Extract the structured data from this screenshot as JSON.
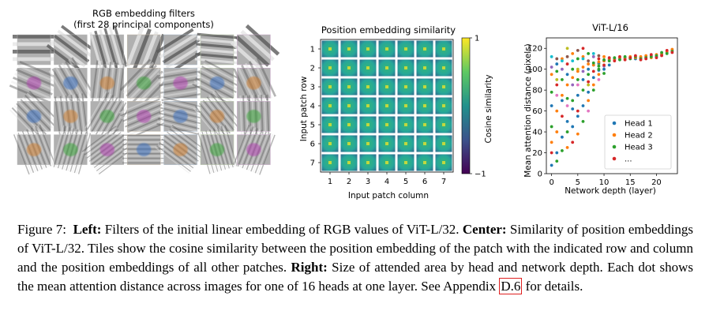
{
  "left_panel": {
    "title_line1": "RGB embedding filters",
    "title_line2": "(first 28 principal components)"
  },
  "center_panel": {
    "chart_data": {
      "type": "heatmap",
      "title": "Position embedding similarity",
      "xlabel": "Input patch column",
      "ylabel": "Input patch row",
      "x_ticks": [
        "1",
        "2",
        "3",
        "4",
        "5",
        "6",
        "7"
      ],
      "y_ticks": [
        "1",
        "2",
        "3",
        "4",
        "5",
        "6",
        "7"
      ],
      "colorbar_label": "Cosine similarity",
      "colorbar_ticks": [
        "1",
        "−1"
      ],
      "colorbar_range": [
        -1,
        1
      ]
    }
  },
  "right_panel": {
    "chart_data": {
      "type": "scatter",
      "title": "ViT-L/16",
      "xlabel": "Network depth (layer)",
      "ylabel": "Mean attention distance (pixels)",
      "xlim": [
        -1,
        24
      ],
      "ylim": [
        0,
        130
      ],
      "x_ticks": [
        0,
        5,
        10,
        15,
        20
      ],
      "y_ticks": [
        0,
        20,
        40,
        60,
        80,
        100,
        120
      ],
      "legend_position": "center-right",
      "series": [
        {
          "name": "Head 1",
          "color": "#1f77b4",
          "values": [
            [
              0,
              8
            ],
            [
              1,
              20
            ],
            [
              2,
              35
            ],
            [
              3,
              50
            ],
            [
              4,
              62
            ],
            [
              5,
              75
            ],
            [
              6,
              90
            ],
            [
              7,
              100
            ],
            [
              8,
              104
            ],
            [
              9,
              106
            ],
            [
              10,
              108
            ],
            [
              11,
              109
            ],
            [
              12,
              110
            ],
            [
              13,
              110
            ],
            [
              14,
              111
            ],
            [
              15,
              111
            ],
            [
              16,
              110
            ],
            [
              17,
              111
            ],
            [
              18,
              112
            ],
            [
              19,
              113
            ],
            [
              20,
              112
            ],
            [
              21,
              114
            ],
            [
              22,
              116
            ],
            [
              23,
              118
            ]
          ]
        },
        {
          "name": "Head 2",
          "color": "#ff7f0e",
          "values": [
            [
              0,
              30
            ],
            [
              1,
              60
            ],
            [
              2,
              75
            ],
            [
              3,
              85
            ],
            [
              4,
              92
            ],
            [
              5,
              98
            ],
            [
              6,
              102
            ],
            [
              7,
              105
            ],
            [
              8,
              104
            ],
            [
              9,
              107
            ],
            [
              10,
              108
            ],
            [
              11,
              110
            ],
            [
              12,
              109
            ],
            [
              13,
              111
            ],
            [
              14,
              110
            ],
            [
              15,
              112
            ],
            [
              16,
              111
            ],
            [
              17,
              112
            ],
            [
              18,
              113
            ],
            [
              19,
              111
            ],
            [
              20,
              114
            ],
            [
              21,
              115
            ],
            [
              22,
              117
            ],
            [
              23,
              119
            ]
          ]
        },
        {
          "name": "Head 3",
          "color": "#2ca02c",
          "values": [
            [
              0,
              45
            ],
            [
              1,
              12
            ],
            [
              2,
              90
            ],
            [
              3,
              40
            ],
            [
              4,
              70
            ],
            [
              5,
              110
            ],
            [
              6,
              80
            ],
            [
              7,
              95
            ],
            [
              8,
              106
            ],
            [
              9,
              103
            ],
            [
              10,
              109
            ],
            [
              11,
              108
            ],
            [
              12,
              111
            ],
            [
              13,
              109
            ],
            [
              14,
              112
            ],
            [
              15,
              110
            ],
            [
              16,
              112
            ],
            [
              17,
              110
            ],
            [
              18,
              111
            ],
            [
              19,
              112
            ],
            [
              20,
              113
            ],
            [
              21,
              116
            ],
            [
              22,
              115
            ],
            [
              23,
              117
            ]
          ]
        },
        {
          "name": "...",
          "color": "#d62728",
          "values": [
            [
              0,
              20
            ],
            [
              1,
              85
            ],
            [
              2,
              55
            ],
            [
              3,
              105
            ],
            [
              4,
              30
            ],
            [
              5,
              60
            ],
            [
              6,
              120
            ],
            [
              7,
              88
            ],
            [
              8,
              98
            ],
            [
              9,
              110
            ],
            [
              10,
              104
            ],
            [
              11,
              111
            ],
            [
              12,
              108
            ],
            [
              13,
              112
            ],
            [
              14,
              109
            ],
            [
              15,
              111
            ],
            [
              16,
              113
            ],
            [
              17,
              109
            ],
            [
              18,
              110
            ],
            [
              19,
              114
            ],
            [
              20,
              111
            ],
            [
              21,
              113
            ],
            [
              22,
              118
            ],
            [
              23,
              116
            ]
          ]
        }
      ],
      "extra_points": [
        {
          "color": "#1f77b4",
          "values": [
            [
              0,
              65
            ],
            [
              1,
              105
            ],
            [
              2,
              70
            ],
            [
              3,
              95
            ],
            [
              4,
              45
            ],
            [
              5,
              55
            ],
            [
              6,
              65
            ],
            [
              7,
              78
            ],
            [
              8,
              92
            ],
            [
              9,
              99
            ],
            [
              10,
              100
            ],
            [
              11,
              104
            ]
          ]
        },
        {
          "color": "#ff7f0e",
          "values": [
            [
              0,
              95
            ],
            [
              1,
              40
            ],
            [
              2,
              110
            ],
            [
              3,
              25
            ],
            [
              4,
              115
            ],
            [
              5,
              38
            ],
            [
              6,
              112
            ],
            [
              7,
              70
            ],
            [
              8,
              85
            ],
            [
              9,
              95
            ],
            [
              10,
              112
            ]
          ]
        },
        {
          "color": "#2ca02c",
          "values": [
            [
              0,
              78
            ],
            [
              1,
              98
            ],
            [
              2,
              22
            ],
            [
              3,
              72
            ],
            [
              4,
              100
            ],
            [
              5,
              90
            ],
            [
              6,
              50
            ],
            [
              7,
              115
            ],
            [
              8,
              80
            ],
            [
              9,
              100
            ],
            [
              10,
              96
            ]
          ]
        },
        {
          "color": "#8c564b",
          "values": [
            [
              1,
              110
            ],
            [
              3,
              112
            ],
            [
              5,
              118
            ],
            [
              7,
              108
            ],
            [
              9,
              113
            ]
          ]
        },
        {
          "color": "#9467bd",
          "values": [
            [
              0,
              102
            ],
            [
              2,
              100
            ],
            [
              4,
              85
            ],
            [
              6,
              98
            ],
            [
              8,
              112
            ],
            [
              10,
              103
            ]
          ]
        },
        {
          "color": "#e377c2",
          "values": [
            [
              1,
              75
            ],
            [
              3,
              65
            ],
            [
              5,
              85
            ],
            [
              7,
              60
            ],
            [
              9,
              90
            ]
          ]
        },
        {
          "color": "#17becf",
          "values": [
            [
              0,
              112
            ],
            [
              2,
              108
            ],
            [
              4,
              108
            ],
            [
              6,
              110
            ],
            [
              8,
              115
            ]
          ]
        },
        {
          "color": "#bcbd22",
          "values": [
            [
              1,
              90
            ],
            [
              3,
              120
            ],
            [
              5,
              100
            ],
            [
              7,
              85
            ],
            [
              9,
              105
            ]
          ]
        }
      ]
    }
  },
  "caption": {
    "label": "Figure 7:",
    "left_head": "Left:",
    "left_text": "Filters of the initial linear embedding of RGB values of ViT-L/32.",
    "center_head": "Center:",
    "center_text": "Similarity of position embeddings of ViT-L/32. Tiles show the cosine similarity between the position embedding of the patch with the indicated row and column and the position embeddings of all other patches.",
    "right_head": "Right:",
    "right_text": "Size of attended area by head and network depth. Each dot shows the mean attention distance across images for one of 16 heads at one layer. See Appendix",
    "ref": "D.6",
    "tail": "for details."
  }
}
